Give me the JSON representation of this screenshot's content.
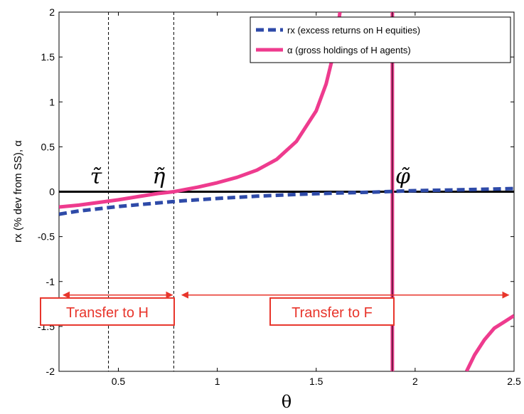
{
  "chart_data": {
    "type": "line",
    "title": "",
    "xlabel": "θ",
    "ylabel": "rx (% dev from SS), α",
    "xlim": [
      0.2,
      2.5
    ],
    "ylim": [
      -2,
      2
    ],
    "grid": false,
    "x_ticks": [
      {
        "value": 0.5,
        "label": "0.5"
      },
      {
        "value": 1,
        "label": "1"
      },
      {
        "value": 1.5,
        "label": "1.5"
      },
      {
        "value": 2,
        "label": "2"
      },
      {
        "value": 2.5,
        "label": "2.5"
      }
    ],
    "y_ticks": [
      {
        "value": 2,
        "label": "2"
      },
      {
        "value": 1.5,
        "label": "1.5"
      },
      {
        "value": 1,
        "label": "1"
      },
      {
        "value": 0.5,
        "label": "0.5"
      },
      {
        "value": 0,
        "label": "0"
      },
      {
        "value": -0.5,
        "label": "-0.5"
      },
      {
        "value": -1,
        "label": "-1"
      },
      {
        "value": -1.5,
        "label": "-1.5"
      },
      {
        "value": -2,
        "label": "-2"
      }
    ],
    "legend": {
      "placement": "top-right",
      "entries": [
        {
          "label": "rx (excess returns on H equities)",
          "color": "#2e4aa8",
          "style": "dashed"
        },
        {
          "label": "α (gross holdings of H agents)",
          "color": "#ee3b8e",
          "style": "solid"
        }
      ]
    },
    "series": [
      {
        "name": "rx (excess returns on H equities)",
        "color": "#2e4aa8",
        "style": "dashed",
        "points": [
          [
            0.2,
            -0.25
          ],
          [
            0.3,
            -0.215
          ],
          [
            0.4,
            -0.19
          ],
          [
            0.5,
            -0.165
          ],
          [
            0.6,
            -0.145
          ],
          [
            0.7,
            -0.125
          ],
          [
            0.8,
            -0.105
          ],
          [
            0.9,
            -0.09
          ],
          [
            1.0,
            -0.075
          ],
          [
            1.2,
            -0.05
          ],
          [
            1.4,
            -0.03
          ],
          [
            1.6,
            -0.015
          ],
          [
            1.8,
            -0.004
          ],
          [
            1.9,
            0.005
          ],
          [
            2.0,
            0.012
          ],
          [
            2.2,
            0.02
          ],
          [
            2.4,
            0.03
          ],
          [
            2.5,
            0.035
          ]
        ]
      },
      {
        "name": "α (gross holdings of H agents)",
        "color": "#ee3b8e",
        "style": "solid",
        "segments": [
          [
            [
              0.2,
              -0.17
            ],
            [
              0.3,
              -0.15
            ],
            [
              0.4,
              -0.12
            ],
            [
              0.5,
              -0.09
            ],
            [
              0.6,
              -0.055
            ],
            [
              0.7,
              -0.02
            ],
            [
              0.78,
              0.0
            ],
            [
              0.9,
              0.05
            ],
            [
              1.0,
              0.1
            ],
            [
              1.1,
              0.16
            ],
            [
              1.2,
              0.24
            ],
            [
              1.3,
              0.36
            ],
            [
              1.4,
              0.56
            ],
            [
              1.5,
              0.9
            ],
            [
              1.55,
              1.2
            ],
            [
              1.6,
              1.65
            ],
            [
              1.62,
              2.0
            ]
          ],
          [
            [
              2.26,
              -2.0
            ],
            [
              2.3,
              -1.82
            ],
            [
              2.35,
              -1.65
            ],
            [
              2.4,
              -1.52
            ],
            [
              2.45,
              -1.45
            ],
            [
              2.5,
              -1.38
            ]
          ]
        ],
        "asymptote_x": 1.885
      },
      {
        "name": "",
        "color": "#000000",
        "style": "solid",
        "points": [
          [
            0.2,
            0
          ],
          [
            2.5,
            0
          ]
        ]
      }
    ],
    "vertical_markers": [
      {
        "x": 0.45,
        "label": "τ̃",
        "color": "#000000",
        "style": "dashed"
      },
      {
        "x": 0.78,
        "label": "η̃",
        "color": "#000000",
        "style": "dashed"
      },
      {
        "x": 1.885,
        "label": "φ̃",
        "color": "#000000",
        "style": "solid"
      }
    ],
    "annotations": [
      {
        "text": "Transfer to H",
        "arrow_from": 0.2,
        "arrow_to": 0.78,
        "arrow_y": -1.15,
        "box_y": -1.35
      },
      {
        "text": "Transfer to F",
        "arrow_from": 0.8,
        "arrow_to": 2.48,
        "arrow_y": -1.15,
        "box_y": -1.35
      }
    ]
  }
}
